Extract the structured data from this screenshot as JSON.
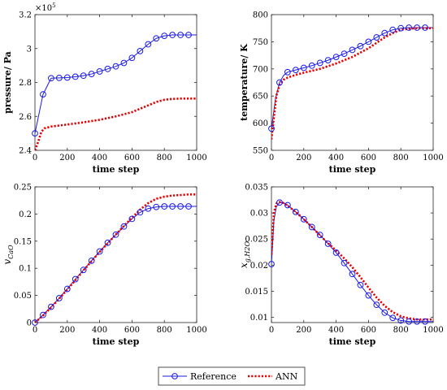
{
  "legend": {
    "reference_label": "Reference",
    "ann_label": "ANN"
  },
  "colors": {
    "reference": "#1a1ae6",
    "ann": "#e60000"
  },
  "chart_data": [
    {
      "type": "line",
      "id": "pressure",
      "xlabel": "time step",
      "ylabel": "pressure/ Pa",
      "exponent_label": "×10",
      "exponent_power": "5",
      "xlim": [
        0,
        1000
      ],
      "ylim": [
        2.4,
        3.2
      ],
      "xticks": [
        0,
        200,
        400,
        600,
        800,
        1000
      ],
      "yticks": [
        2.4,
        2.6,
        2.8,
        3.0,
        3.2
      ],
      "ytick_labels": [
        "2.4",
        "2.6",
        "2.8",
        "3",
        "3.2"
      ],
      "series": [
        {
          "name": "Reference",
          "x": [
            0,
            50,
            100,
            150,
            200,
            250,
            300,
            350,
            400,
            450,
            500,
            550,
            600,
            650,
            700,
            750,
            800,
            850,
            900,
            950,
            1000
          ],
          "values": [
            2.5,
            2.73,
            2.825,
            2.827,
            2.829,
            2.834,
            2.84,
            2.85,
            2.865,
            2.88,
            2.895,
            2.915,
            2.945,
            2.985,
            3.025,
            3.06,
            3.075,
            3.08,
            3.08,
            3.08,
            3.08
          ],
          "markers_x": [
            0,
            50,
            100,
            150,
            200,
            250,
            300,
            350,
            400,
            450,
            500,
            550,
            600,
            650,
            700,
            750,
            800,
            850,
            900,
            950
          ]
        },
        {
          "name": "ANN",
          "x": [
            0,
            20,
            40,
            60,
            80,
            100,
            200,
            300,
            400,
            500,
            600,
            650,
            700,
            750,
            800,
            850,
            900,
            1000
          ],
          "values": [
            2.4,
            2.45,
            2.51,
            2.53,
            2.535,
            2.54,
            2.552,
            2.565,
            2.58,
            2.6,
            2.625,
            2.645,
            2.665,
            2.685,
            2.698,
            2.703,
            2.705,
            2.705
          ]
        }
      ]
    },
    {
      "type": "line",
      "id": "temperature",
      "xlabel": "time step",
      "ylabel": "temperature/ K",
      "xlim": [
        0,
        1000
      ],
      "ylim": [
        550,
        800
      ],
      "xticks": [
        0,
        200,
        400,
        600,
        800,
        1000
      ],
      "yticks": [
        550,
        600,
        650,
        700,
        750,
        800
      ],
      "ytick_labels": [
        "550",
        "600",
        "650",
        "700",
        "750",
        "800"
      ],
      "series": [
        {
          "name": "Reference",
          "x": [
            0,
            25,
            50,
            75,
            100,
            150,
            200,
            250,
            300,
            350,
            400,
            450,
            500,
            550,
            600,
            650,
            700,
            750,
            800,
            850,
            900,
            950,
            1000
          ],
          "values": [
            590,
            645,
            675,
            688,
            694,
            698,
            702,
            706,
            711,
            716,
            722,
            728,
            735,
            742,
            750,
            758,
            766,
            772,
            775,
            776,
            776,
            776,
            776
          ],
          "markers_x": [
            0,
            50,
            100,
            150,
            200,
            250,
            300,
            350,
            400,
            450,
            500,
            550,
            600,
            650,
            700,
            750,
            800,
            850,
            900,
            950
          ]
        },
        {
          "name": "ANN",
          "x": [
            0,
            15,
            30,
            50,
            75,
            100,
            150,
            200,
            300,
            400,
            500,
            550,
            600,
            650,
            700,
            750,
            800,
            850,
            900,
            1000
          ],
          "values": [
            570,
            610,
            650,
            670,
            680,
            684,
            689,
            693,
            700,
            710,
            722,
            730,
            738,
            748,
            758,
            766,
            772,
            774,
            775,
            775
          ]
        }
      ]
    },
    {
      "type": "line",
      "id": "vcao",
      "xlabel": "time step",
      "ylabel": "v",
      "ylabel_sub": "CaO",
      "xlim": [
        0,
        1000
      ],
      "ylim": [
        0,
        0.25
      ],
      "xticks": [
        0,
        200,
        400,
        600,
        800,
        1000
      ],
      "yticks": [
        0,
        0.05,
        0.1,
        0.15,
        0.2,
        0.25
      ],
      "ytick_labels": [
        "0",
        "0.05",
        "0.1",
        "0.15",
        "0.2",
        "0.25"
      ],
      "series": [
        {
          "name": "Reference",
          "x": [
            0,
            50,
            100,
            150,
            200,
            250,
            300,
            350,
            400,
            450,
            500,
            550,
            600,
            650,
            700,
            750,
            800,
            850,
            900,
            950,
            1000
          ],
          "values": [
            0.0,
            0.014,
            0.029,
            0.045,
            0.062,
            0.08,
            0.097,
            0.114,
            0.131,
            0.147,
            0.162,
            0.177,
            0.191,
            0.203,
            0.21,
            0.213,
            0.214,
            0.214,
            0.214,
            0.214,
            0.214
          ],
          "markers_x": [
            0,
            50,
            100,
            150,
            200,
            250,
            300,
            350,
            400,
            450,
            500,
            550,
            600,
            650,
            700,
            750,
            800,
            850,
            900,
            950
          ]
        },
        {
          "name": "ANN",
          "x": [
            0,
            50,
            100,
            150,
            200,
            250,
            300,
            350,
            400,
            450,
            500,
            550,
            600,
            650,
            700,
            750,
            800,
            850,
            900,
            950,
            1000
          ],
          "values": [
            0.0,
            0.013,
            0.028,
            0.044,
            0.061,
            0.078,
            0.096,
            0.113,
            0.13,
            0.146,
            0.162,
            0.178,
            0.193,
            0.208,
            0.22,
            0.228,
            0.232,
            0.234,
            0.235,
            0.236,
            0.236
          ]
        }
      ]
    },
    {
      "type": "line",
      "id": "xgh2o",
      "xlabel": "time step",
      "ylabel": "x",
      "ylabel_sub": "g,H2O",
      "xlim": [
        0,
        1000
      ],
      "ylim": [
        0.009,
        0.035
      ],
      "xticks": [
        0,
        200,
        400,
        600,
        800,
        1000
      ],
      "yticks": [
        0.01,
        0.015,
        0.02,
        0.025,
        0.03,
        0.035
      ],
      "ytick_labels": [
        "0.01",
        "0.015",
        "0.02",
        "0.025",
        "0.03",
        "0.035"
      ],
      "series": [
        {
          "name": "Reference",
          "x": [
            0,
            15,
            30,
            50,
            75,
            100,
            150,
            200,
            250,
            300,
            350,
            400,
            450,
            500,
            550,
            600,
            650,
            700,
            750,
            800,
            850,
            900,
            950,
            1000
          ],
          "values": [
            0.0202,
            0.0285,
            0.0312,
            0.032,
            0.0319,
            0.0315,
            0.0302,
            0.0288,
            0.0273,
            0.0258,
            0.0241,
            0.0224,
            0.0204,
            0.0183,
            0.0162,
            0.0142,
            0.0124,
            0.0109,
            0.0099,
            0.0094,
            0.0092,
            0.0092,
            0.0092,
            0.0092
          ],
          "markers_x": [
            0,
            50,
            100,
            150,
            200,
            250,
            300,
            350,
            400,
            450,
            500,
            550,
            600,
            650,
            700,
            750,
            800,
            850,
            900,
            950
          ]
        },
        {
          "name": "ANN",
          "x": [
            0,
            15,
            30,
            50,
            75,
            100,
            150,
            200,
            250,
            300,
            350,
            400,
            450,
            500,
            550,
            600,
            650,
            700,
            750,
            800,
            850,
            900,
            950,
            1000
          ],
          "values": [
            0.022,
            0.03,
            0.0318,
            0.0321,
            0.0319,
            0.0314,
            0.0302,
            0.0288,
            0.0273,
            0.0257,
            0.0242,
            0.0228,
            0.0213,
            0.0196,
            0.0177,
            0.0157,
            0.0138,
            0.0122,
            0.011,
            0.0102,
            0.0098,
            0.0096,
            0.0096,
            0.0096
          ]
        }
      ]
    }
  ]
}
